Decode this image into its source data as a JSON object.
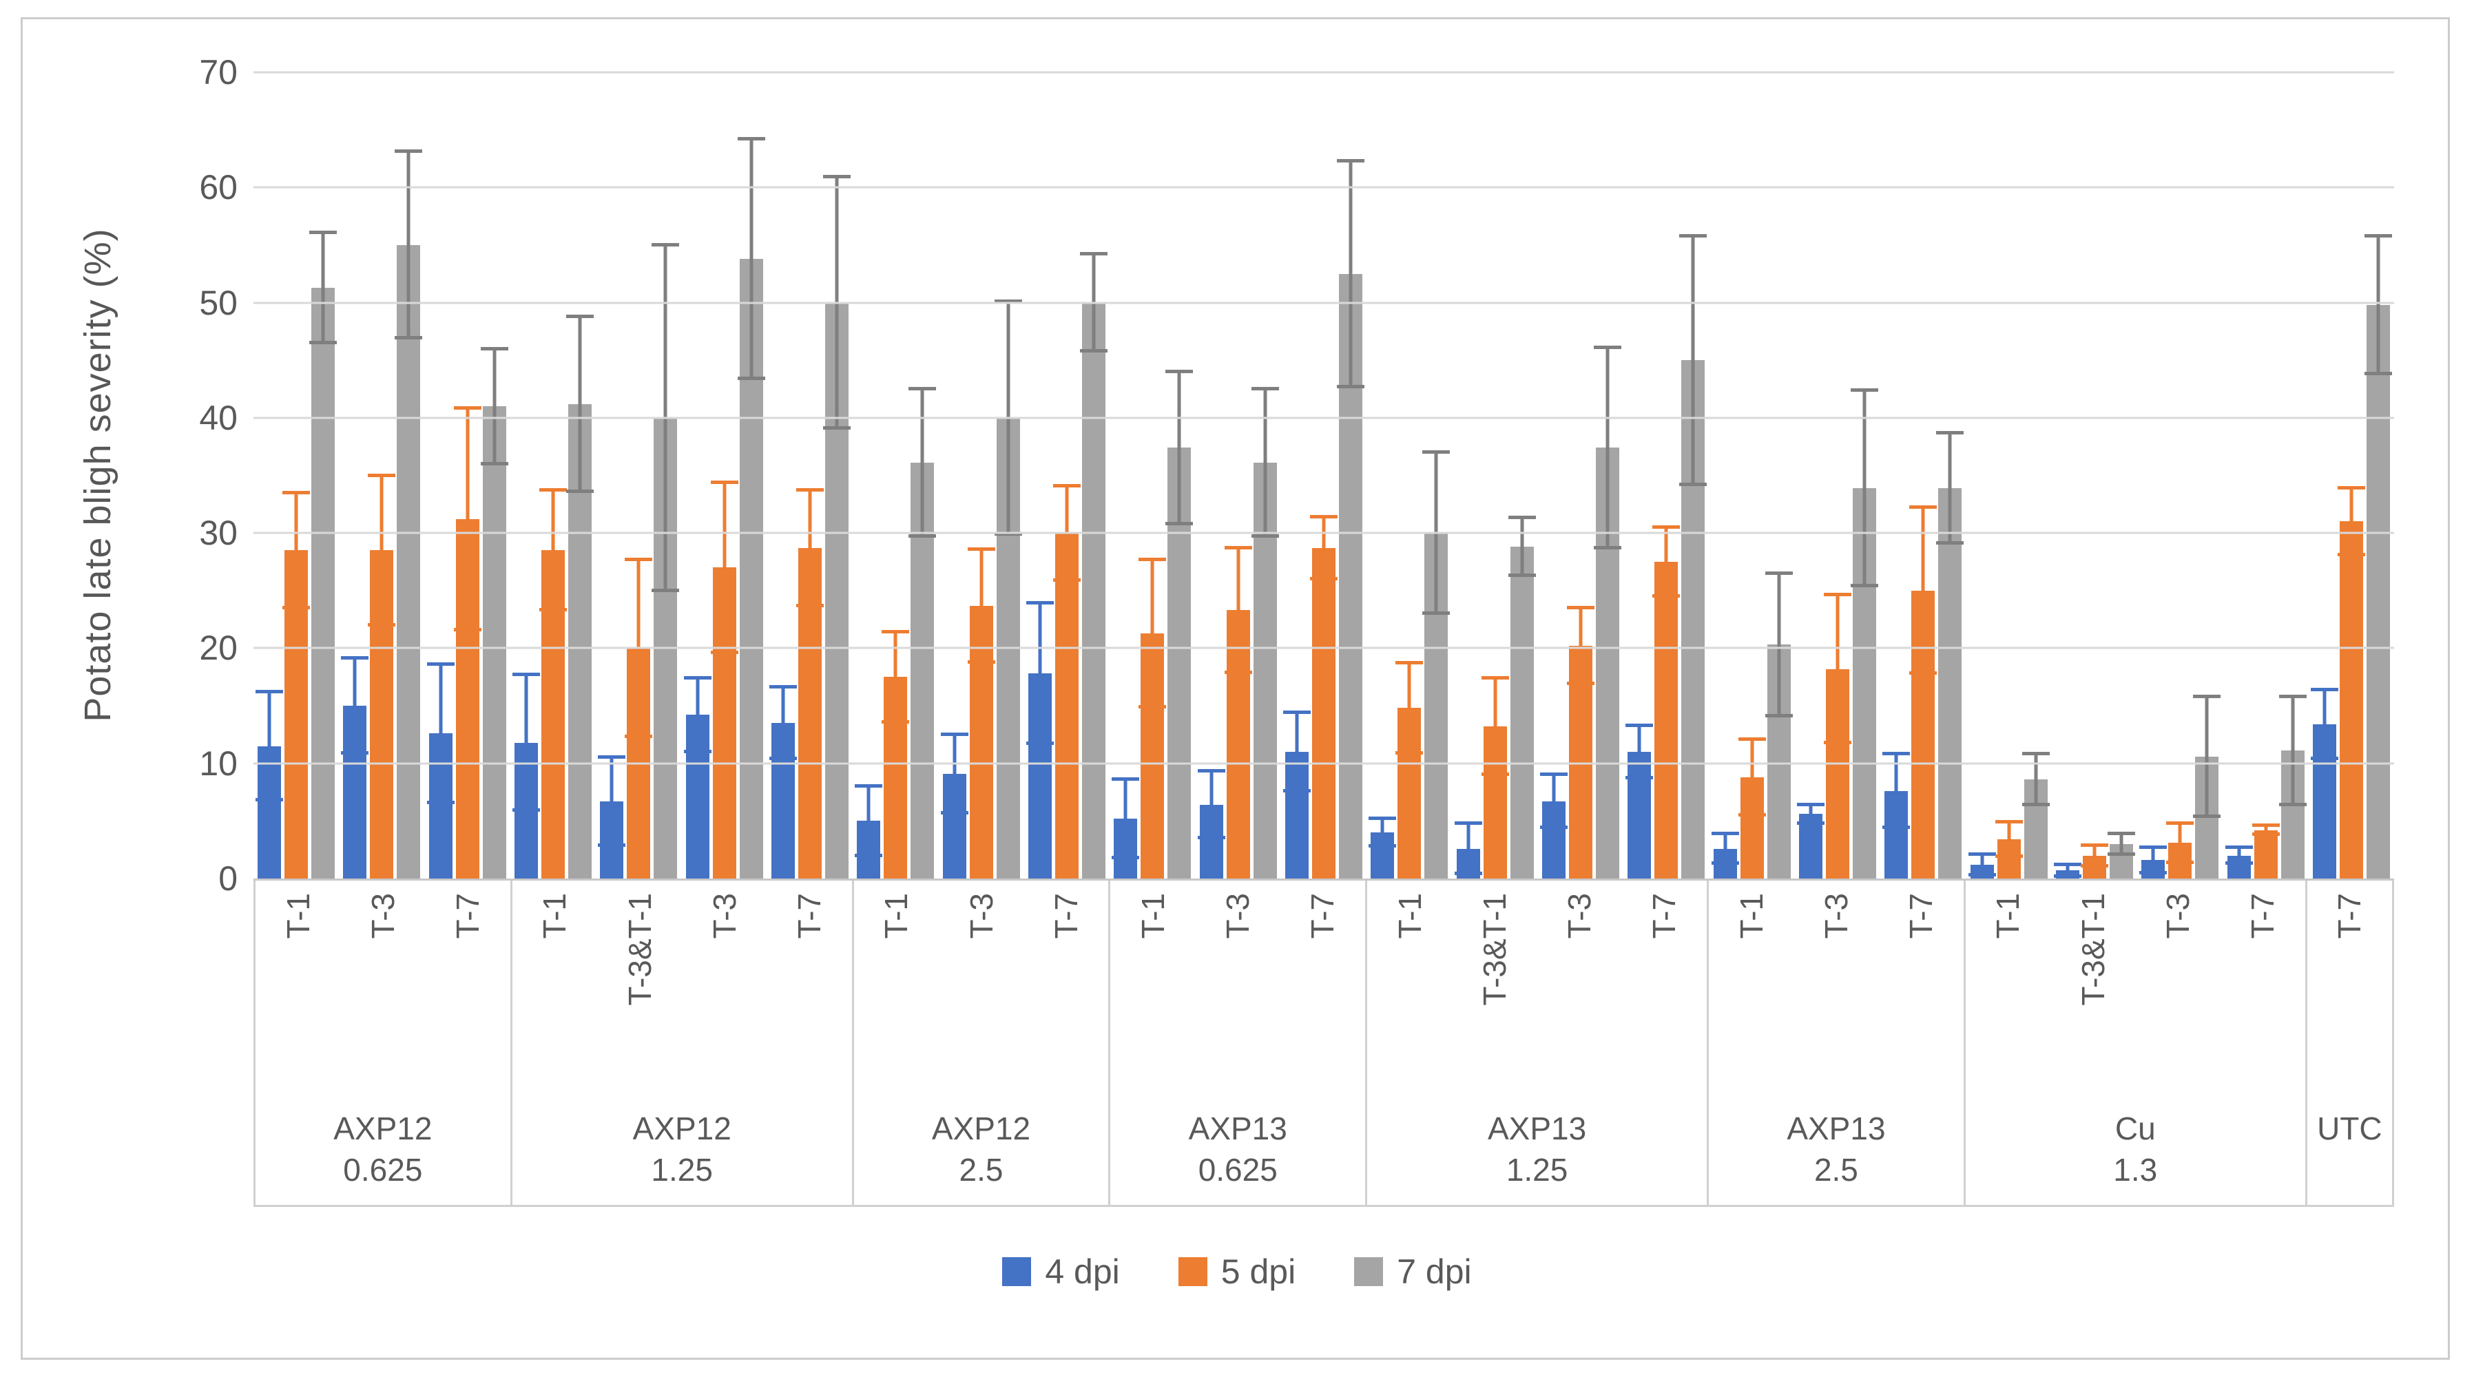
{
  "chart_data": {
    "type": "bar",
    "title": "",
    "ylabel": "Potato late bligh severity (%)",
    "xlabel": "",
    "ylim": [
      0,
      70
    ],
    "yticks": [
      0,
      10,
      20,
      30,
      40,
      50,
      60,
      70
    ],
    "grid": "horizontal",
    "legend_position": "bottom",
    "series_names": [
      "4 dpi",
      "5 dpi",
      "7 dpi"
    ],
    "legend": [
      {
        "name": "4 dpi",
        "color": "#4472C4"
      },
      {
        "name": "5 dpi",
        "color": "#ED7D31"
      },
      {
        "name": "7 dpi",
        "color": "#A5A5A5"
      }
    ],
    "error_bars": "symmetric, values in errors arrays (same order as series)",
    "groups": [
      {
        "name": "AXP12",
        "conc": "0.625",
        "clusters": [
          {
            "label": "T-1",
            "values": [
              11.5,
              28.5,
              51.3
            ],
            "errors": [
              4.7,
              5.0,
              4.8
            ]
          },
          {
            "label": "T-3",
            "values": [
              15.0,
              28.5,
              55.0
            ],
            "errors": [
              4.1,
              6.5,
              8.1
            ]
          },
          {
            "label": "T-7",
            "values": [
              12.6,
              31.2,
              41.0
            ],
            "errors": [
              6.0,
              9.6,
              5.0
            ]
          }
        ]
      },
      {
        "name": "AXP12",
        "conc": "1.25",
        "clusters": [
          {
            "label": "T-1",
            "values": [
              11.8,
              28.5,
              41.2
            ],
            "errors": [
              5.9,
              5.2,
              7.6
            ]
          },
          {
            "label": "T-3&T-1",
            "values": [
              6.7,
              20.0,
              40.0
            ],
            "errors": [
              3.8,
              7.7,
              15.0
            ]
          },
          {
            "label": "T-3",
            "values": [
              14.2,
              27.0,
              53.8
            ],
            "errors": [
              3.2,
              7.4,
              10.4
            ]
          },
          {
            "label": "T-7",
            "values": [
              13.5,
              28.7,
              50.0
            ],
            "errors": [
              3.1,
              5.0,
              10.9
            ]
          }
        ]
      },
      {
        "name": "AXP12",
        "conc": "2.5",
        "clusters": [
          {
            "label": "T-1",
            "values": [
              5.0,
              17.5,
              36.1
            ],
            "errors": [
              3.0,
              3.9,
              6.4
            ]
          },
          {
            "label": "T-3",
            "values": [
              9.1,
              23.7,
              40.0
            ],
            "errors": [
              3.4,
              4.9,
              10.1
            ]
          },
          {
            "label": "T-7",
            "values": [
              17.8,
              30.0,
              50.0
            ],
            "errors": [
              6.1,
              4.1,
              4.2
            ]
          }
        ]
      },
      {
        "name": "AXP13",
        "conc": "0.625",
        "clusters": [
          {
            "label": "T-1",
            "values": [
              5.2,
              21.3,
              37.4
            ],
            "errors": [
              3.4,
              6.4,
              6.6
            ]
          },
          {
            "label": "T-3",
            "values": [
              6.4,
              23.3,
              36.1
            ],
            "errors": [
              2.9,
              5.4,
              6.4
            ]
          },
          {
            "label": "T-7",
            "values": [
              11.0,
              28.7,
              52.5
            ],
            "errors": [
              3.4,
              2.7,
              9.8
            ]
          }
        ]
      },
      {
        "name": "AXP13",
        "conc": "1.25",
        "clusters": [
          {
            "label": "T-1",
            "values": [
              4.0,
              14.8,
              30.0
            ],
            "errors": [
              1.2,
              3.9,
              7.0
            ]
          },
          {
            "label": "T-3&T-1",
            "values": [
              2.6,
              13.2,
              28.8
            ],
            "errors": [
              2.2,
              4.2,
              2.5
            ]
          },
          {
            "label": "T-3",
            "values": [
              6.7,
              20.2,
              37.4
            ],
            "errors": [
              2.3,
              3.3,
              8.7
            ]
          },
          {
            "label": "T-7",
            "values": [
              11.0,
              27.5,
              45.0
            ],
            "errors": [
              2.3,
              3.0,
              10.8
            ]
          }
        ]
      },
      {
        "name": "AXP13",
        "conc": "2.5",
        "clusters": [
          {
            "label": "T-1",
            "values": [
              2.6,
              8.8,
              20.3
            ],
            "errors": [
              1.3,
              3.3,
              6.2
            ]
          },
          {
            "label": "T-3",
            "values": [
              5.6,
              18.2,
              33.9
            ],
            "errors": [
              0.8,
              6.4,
              8.5
            ]
          },
          {
            "label": "T-7",
            "values": [
              7.6,
              25.0,
              33.9
            ],
            "errors": [
              3.2,
              7.2,
              4.8
            ]
          }
        ]
      },
      {
        "name": "Cu",
        "conc": "1.3",
        "clusters": [
          {
            "label": "T-1",
            "values": [
              1.2,
              3.4,
              8.6
            ],
            "errors": [
              0.9,
              1.5,
              2.2
            ]
          },
          {
            "label": "T-3&T-1",
            "values": [
              0.7,
              2.0,
              3.0
            ],
            "errors": [
              0.5,
              0.9,
              0.9
            ]
          },
          {
            "label": "T-3",
            "values": [
              1.6,
              3.1,
              10.6
            ],
            "errors": [
              1.1,
              1.7,
              5.2
            ]
          },
          {
            "label": "T-7",
            "values": [
              2.0,
              4.2,
              11.1
            ],
            "errors": [
              0.7,
              0.4,
              4.7
            ]
          }
        ]
      },
      {
        "name": "UTC",
        "conc": "",
        "clusters": [
          {
            "label": "T-7",
            "values": [
              13.4,
              31.0,
              49.8
            ],
            "errors": [
              3.0,
              2.9,
              6.0
            ]
          }
        ]
      }
    ],
    "colors": {
      "series": [
        "#4472C4",
        "#ED7D31",
        "#A5A5A5"
      ],
      "error_bars": [
        "#4472C4",
        "#ED7D31",
        "#7F7F7F"
      ],
      "gridline": "#D9D9D9",
      "axis_line": "#C8C8C8",
      "text": "#595959",
      "frame_border": "#CCCCCC",
      "background": "#FFFFFF"
    }
  }
}
